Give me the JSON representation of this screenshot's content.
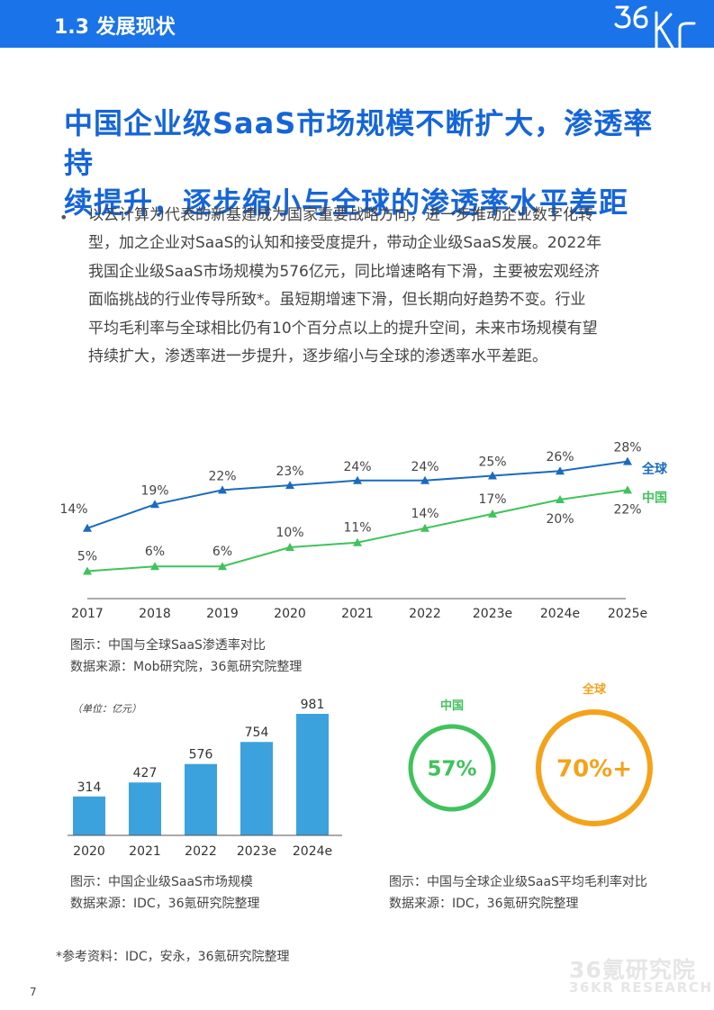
{
  "header": {
    "section_title": "1.3 发展现状",
    "logo_text": "36Kr"
  },
  "title_lines": [
    "中国企业级SaaS市场规模不断扩大，渗透率持",
    "续提升，逐步缩小与全球的渗透率水平差距"
  ],
  "bullet_char": "•",
  "body_lines": [
    "以云计算为代表的新基建成为国家重要战略方向，进一步推动企业数字化转",
    "型，加之企业对SaaS的认知和接受度提升，带动企业级SaaS发展。2022年",
    "我国企业级SaaS市场规模为576亿元，同比增速略有下滑，主要被宏观经济",
    "面临挑战的行业传导所致*。虽短期增速下滑，但长期向好趋势不变。行业",
    "平均毛利率与全球相比仍有10个百分点以上的提升空间，未来市场规模有望",
    "持续扩大，渗透率进一步提升，逐步缩小与全球的渗透率水平差距。"
  ],
  "colors": {
    "header_blue": "#1a73e8",
    "title_blue": "#1565d8",
    "global_line": "#1a6bbf",
    "china_line": "#3fc35a",
    "bar_blue": "#3ba2dd",
    "ring_green": "#3fc35a",
    "ring_orange": "#f5a21b"
  },
  "chart_data": [
    {
      "type": "line",
      "x": [
        "2017",
        "2018",
        "2019",
        "2020",
        "2021",
        "2022",
        "2023e",
        "2024e",
        "2025e"
      ],
      "series": [
        {
          "name": "全球",
          "values": [
            14,
            19,
            22,
            23,
            24,
            24,
            25,
            26,
            28
          ]
        },
        {
          "name": "中国",
          "values": [
            5,
            6,
            6,
            10,
            11,
            14,
            17,
            20,
            22
          ]
        }
      ],
      "value_labels": {
        "全球": [
          "14%",
          "19%",
          "22%",
          "23%",
          "24%",
          "24%",
          "25%",
          "26%",
          "28%"
        ],
        "中国": [
          "5%",
          "6%",
          "6%",
          "10%",
          "11%",
          "14%",
          "17%",
          "20%",
          "22%"
        ]
      },
      "ylim": [
        0,
        30
      ],
      "grid": false,
      "legend": "right, at line ends"
    },
    {
      "type": "bar",
      "unit_note": "（单位：亿元）",
      "categories": [
        "2020",
        "2021",
        "2022",
        "2023e",
        "2024e"
      ],
      "values": [
        314,
        427,
        576,
        754,
        981
      ],
      "ylim": [
        0,
        1000
      ]
    },
    {
      "type": "pie",
      "style": "ring",
      "items": [
        {
          "name": "中国",
          "value_label": "57%",
          "color": "#3fc35a"
        },
        {
          "name": "全球",
          "value_label": "70%+",
          "color": "#f5a21b"
        }
      ]
    }
  ],
  "captions": {
    "line_chart": [
      "图示：中国与全球SaaS渗透率对比",
      "数据来源：Mob研究院，36氪研究院整理"
    ],
    "bar_chart": [
      "图示：中国企业级SaaS市场规模",
      "数据来源：IDC，36氪研究院整理"
    ],
    "ring_chart": [
      "图示：中国与全球企业级SaaS平均毛利率对比",
      "数据来源：IDC，36氪研究院整理"
    ]
  },
  "footnote": "*参考资料：IDC，安永，36氪研究院整理",
  "page_number": "7",
  "watermark": {
    "cn": "36氪研究院",
    "en": "36KR RESEARCH"
  }
}
